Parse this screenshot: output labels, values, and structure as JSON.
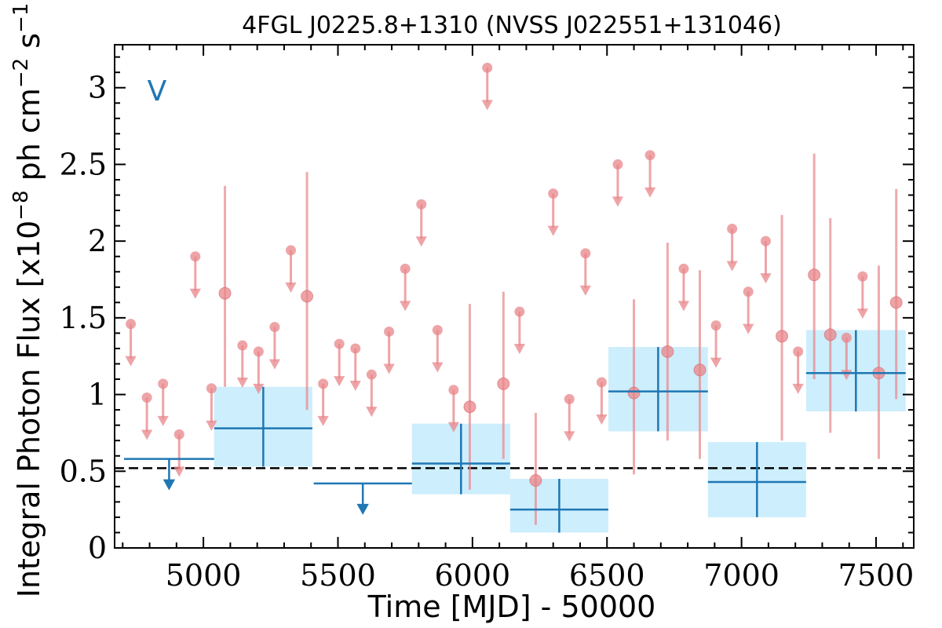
{
  "chart_data": {
    "type": "scatter",
    "title": "4FGL J0225.8+1310 (NVSS J022551+131046)",
    "xlabel": "Time [MJD] - 50000",
    "ylabel": "Integral Photon Flux [x10^-8 ph cm^-2 s^-1]",
    "ylabel_parts": {
      "base": "Integral Photon Flux [x10",
      "exp1": "−8",
      "mid": " ph cm",
      "exp2": "−2",
      "mid2": " s",
      "exp3": "−1",
      "end": "]"
    },
    "panel_tag": "V",
    "xlim": [
      4670,
      7640
    ],
    "ylim": [
      0,
      3.28
    ],
    "xticks": [
      5000,
      5500,
      6000,
      6500,
      7000,
      7500
    ],
    "yticks": [
      {
        "value": 0,
        "label": "0"
      },
      {
        "value": 0.5,
        "label": "0.5"
      },
      {
        "value": 1,
        "label": "1"
      },
      {
        "value": 1.5,
        "label": "1.5"
      },
      {
        "value": 2,
        "label": "2"
      },
      {
        "value": 2.5,
        "label": "2.5"
      },
      {
        "value": 3,
        "label": "3"
      }
    ],
    "reference_line": {
      "y": 0.52,
      "style": "dashed"
    },
    "colors": {
      "short_bins": "#e8868a",
      "long_bins": "#1f77b4",
      "long_bin_box": "#cdeefc",
      "reference_line": "#000000"
    },
    "series": [
      {
        "kind": "short_bin_detections",
        "points": [
          {
            "x": 5080,
            "y": 1.66,
            "lo": 1.05,
            "hi": 2.36
          },
          {
            "x": 5385,
            "y": 1.64,
            "lo": 0.9,
            "hi": 2.45
          },
          {
            "x": 5990,
            "y": 0.92,
            "lo": 0.38,
            "hi": 1.59
          },
          {
            "x": 6115,
            "y": 1.07,
            "lo": 0.58,
            "hi": 1.67
          },
          {
            "x": 6235,
            "y": 0.44,
            "lo": 0.15,
            "hi": 0.88
          },
          {
            "x": 6600,
            "y": 1.01,
            "lo": 0.48,
            "hi": 1.62
          },
          {
            "x": 6725,
            "y": 1.28,
            "lo": 0.7,
            "hi": 1.99
          },
          {
            "x": 6845,
            "y": 1.16,
            "lo": 0.58,
            "hi": 1.81
          },
          {
            "x": 7150,
            "y": 1.38,
            "lo": 0.7,
            "hi": 2.17
          },
          {
            "x": 7270,
            "y": 1.78,
            "lo": 1.1,
            "hi": 2.57
          },
          {
            "x": 7330,
            "y": 1.39,
            "lo": 0.75,
            "hi": 2.15
          },
          {
            "x": 7510,
            "y": 1.14,
            "lo": 0.58,
            "hi": 1.84
          },
          {
            "x": 7575,
            "y": 1.6,
            "lo": 0.97,
            "hi": 2.34
          }
        ]
      },
      {
        "kind": "short_bin_upper_limits",
        "points": [
          {
            "x": 4730,
            "y": 1.46
          },
          {
            "x": 4790,
            "y": 0.98
          },
          {
            "x": 4850,
            "y": 1.07
          },
          {
            "x": 4910,
            "y": 0.74
          },
          {
            "x": 4970,
            "y": 1.9
          },
          {
            "x": 5030,
            "y": 1.04
          },
          {
            "x": 5145,
            "y": 1.32
          },
          {
            "x": 5205,
            "y": 1.28
          },
          {
            "x": 5265,
            "y": 1.44
          },
          {
            "x": 5325,
            "y": 1.94
          },
          {
            "x": 5445,
            "y": 1.07
          },
          {
            "x": 5505,
            "y": 1.33
          },
          {
            "x": 5565,
            "y": 1.3
          },
          {
            "x": 5625,
            "y": 1.13
          },
          {
            "x": 5690,
            "y": 1.41
          },
          {
            "x": 5750,
            "y": 1.82
          },
          {
            "x": 5810,
            "y": 2.24
          },
          {
            "x": 5870,
            "y": 1.42
          },
          {
            "x": 5930,
            "y": 1.03
          },
          {
            "x": 6055,
            "y": 3.13
          },
          {
            "x": 6175,
            "y": 1.54
          },
          {
            "x": 6300,
            "y": 2.31
          },
          {
            "x": 6360,
            "y": 0.97
          },
          {
            "x": 6420,
            "y": 1.92
          },
          {
            "x": 6480,
            "y": 1.08
          },
          {
            "x": 6540,
            "y": 2.5
          },
          {
            "x": 6660,
            "y": 2.56
          },
          {
            "x": 6785,
            "y": 1.82
          },
          {
            "x": 6905,
            "y": 1.45
          },
          {
            "x": 6965,
            "y": 2.08
          },
          {
            "x": 7025,
            "y": 1.67
          },
          {
            "x": 7090,
            "y": 2.0
          },
          {
            "x": 7210,
            "y": 1.28
          },
          {
            "x": 7390,
            "y": 1.37
          },
          {
            "x": 7450,
            "y": 1.77
          }
        ]
      },
      {
        "kind": "long_bin_detections",
        "bins": [
          {
            "x0": 5040,
            "x1": 5405,
            "y": 0.78,
            "lo": 0.53,
            "hi": 1.05
          },
          {
            "x0": 5775,
            "x1": 6140,
            "y": 0.55,
            "lo": 0.35,
            "hi": 0.81
          },
          {
            "x0": 6140,
            "x1": 6505,
            "y": 0.25,
            "lo": 0.1,
            "hi": 0.45
          },
          {
            "x0": 6505,
            "x1": 6875,
            "y": 1.02,
            "lo": 0.76,
            "hi": 1.31
          },
          {
            "x0": 6875,
            "x1": 7240,
            "y": 0.43,
            "lo": 0.2,
            "hi": 0.69
          },
          {
            "x0": 7240,
            "x1": 7610,
            "y": 1.14,
            "lo": 0.89,
            "hi": 1.42
          }
        ]
      },
      {
        "kind": "long_bin_upper_limits",
        "bins": [
          {
            "x0": 4705,
            "x1": 5040,
            "y": 0.58
          },
          {
            "x0": 5410,
            "x1": 5775,
            "y": 0.42
          }
        ]
      }
    ]
  }
}
